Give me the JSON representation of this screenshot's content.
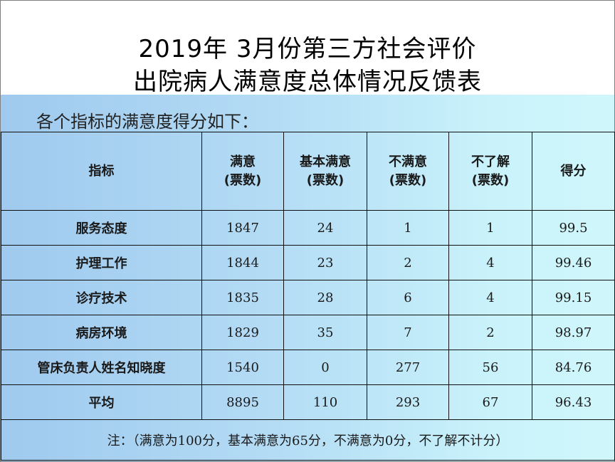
{
  "title": {
    "line1": "2019年 3月份第三方社会评价",
    "line2": "出院病人满意度总体情况反馈表"
  },
  "subtitle": "各个指标的满意度得分如下：",
  "table": {
    "headers": [
      {
        "line1": "指标",
        "line2": ""
      },
      {
        "line1": "满意",
        "line2": "(票数)"
      },
      {
        "line1": "基本满意",
        "line2": "(票数)"
      },
      {
        "line1": "不满意",
        "line2": "(票数)"
      },
      {
        "line1": "不了解",
        "line2": "(票数)"
      },
      {
        "line1": "得分",
        "line2": ""
      }
    ],
    "rows": [
      [
        "服务态度",
        "1847",
        "24",
        "1",
        "1",
        "99.5"
      ],
      [
        "护理工作",
        "1844",
        "23",
        "2",
        "4",
        "99.46"
      ],
      [
        "诊疗技术",
        "1835",
        "28",
        "6",
        "4",
        "99.15"
      ],
      [
        "病房环境",
        "1829",
        "35",
        "7",
        "2",
        "98.97"
      ],
      [
        "管床负责人姓名知晓度",
        "1540",
        "0",
        "277",
        "56",
        "84.76"
      ],
      [
        "平均",
        "8895",
        "110",
        "293",
        "67",
        "96.43"
      ]
    ],
    "note": "注：（满意为100分，基本满意为65分，不满意为0分，不了解不计分）"
  }
}
